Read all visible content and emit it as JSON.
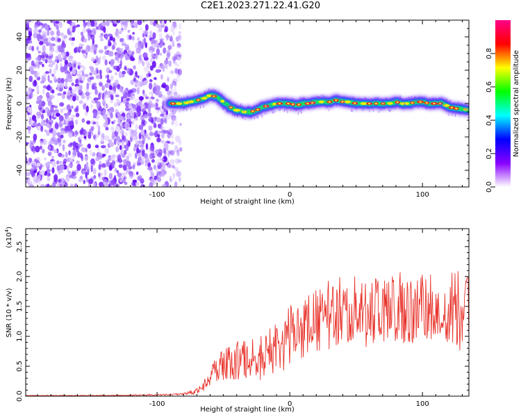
{
  "figure_title": "C2E1.2023.271.22.41.G20",
  "chart_data": [
    {
      "type": "heatmap",
      "xlabel": "Height of straight line (km)",
      "ylabel": "Frequency (Hz)",
      "xlim": [
        -199,
        135
      ],
      "ylim": [
        -50,
        50
      ],
      "xticks": [
        -100,
        0,
        100
      ],
      "yticks": [
        -40,
        -20,
        0,
        20,
        40
      ],
      "noise_region_x": [
        -199,
        -80
      ],
      "ridge": {
        "x": [
          -90,
          -85,
          -80,
          -75,
          -70,
          -65,
          -60,
          -55,
          -50,
          -45,
          -40,
          -35,
          -30,
          -25,
          -20,
          -15,
          -10,
          -5,
          0,
          5,
          10,
          15,
          20,
          25,
          30,
          35,
          40,
          45,
          50,
          55,
          60,
          65,
          70,
          75,
          80,
          85,
          90,
          95,
          100,
          105,
          110,
          115,
          120,
          125,
          130,
          135
        ],
        "y": [
          0,
          0,
          0,
          1,
          2,
          3,
          5,
          4,
          1,
          -2,
          -4,
          -5,
          -5,
          -4,
          -2,
          -1,
          0,
          0,
          0,
          -1,
          0,
          0,
          1,
          1,
          1,
          2,
          1,
          1,
          0,
          0,
          0,
          0,
          0,
          0,
          1,
          0,
          0,
          1,
          1,
          0,
          0,
          0,
          -2,
          -3,
          -3,
          -4
        ]
      },
      "colorbar": {
        "label": "Normalized spectral amplitude",
        "range": [
          0,
          1
        ],
        "ticks": [
          "0.0",
          "0.2",
          "0.4",
          "0.6",
          "0.8"
        ],
        "colors": [
          "#ffffff",
          "#8800ff",
          "#0000ff",
          "#00ffff",
          "#00ff00",
          "#ffff00",
          "#ff0000",
          "#ff0088"
        ]
      }
    },
    {
      "type": "line",
      "xlabel": "Height of straight line (km)",
      "ylabel": "SNR (10 * v/v)",
      "yscale_label": "(x10",
      "yscale_exp": "4",
      "xlim": [
        -199,
        135
      ],
      "ylim": [
        0,
        2.8
      ],
      "xticks": [
        -100,
        0,
        100
      ],
      "yticks": [
        "0.0",
        "0.5",
        "1.0",
        "1.5",
        "2.0",
        "2.5"
      ],
      "color": "#e8332b",
      "series": [
        {
          "x": [
            -199,
            -150,
            -100,
            -80,
            -70,
            -66,
            -60,
            -55,
            -50,
            -45,
            -40,
            -34,
            -30,
            -20,
            -10,
            0,
            10,
            20,
            30,
            40,
            50,
            60,
            70,
            80,
            90,
            100,
            110,
            120,
            125,
            130,
            135
          ],
          "y": [
            0.01,
            0.01,
            0.02,
            0.03,
            0.08,
            0.15,
            0.35,
            0.45,
            0.5,
            0.55,
            0.6,
            0.65,
            0.6,
            0.65,
            0.75,
            1.0,
            1.15,
            1.25,
            1.35,
            1.45,
            1.45,
            1.4,
            1.45,
            1.5,
            1.45,
            1.45,
            1.5,
            1.5,
            1.45,
            1.4,
            1.45
          ],
          "noise": [
            0.005,
            0.005,
            0.01,
            0.02,
            0.05,
            0.1,
            0.2,
            0.25,
            0.28,
            0.3,
            0.35,
            0.35,
            0.35,
            0.38,
            0.4,
            0.5,
            0.5,
            0.55,
            0.6,
            0.6,
            0.6,
            0.6,
            0.6,
            0.6,
            0.6,
            0.6,
            0.6,
            0.6,
            0.65,
            0.7,
            0.65
          ]
        }
      ]
    }
  ]
}
